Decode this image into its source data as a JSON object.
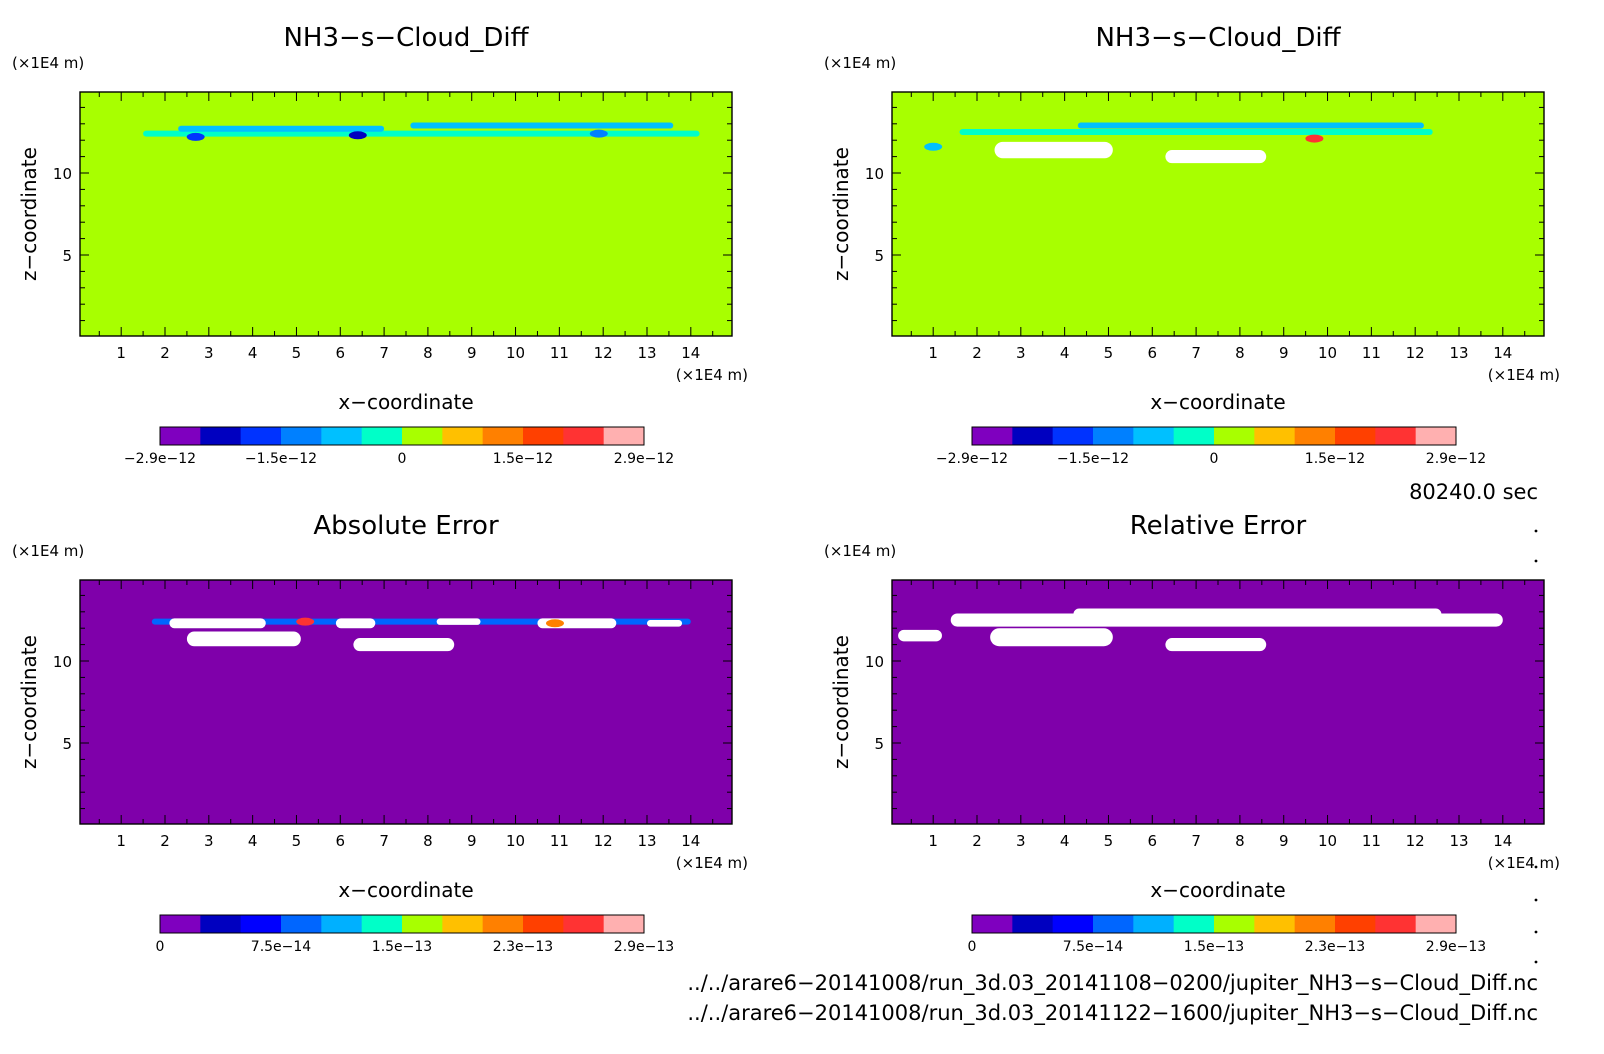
{
  "chart_data": [
    {
      "type": "heatmap",
      "title": "NH3−s−Cloud_Diff",
      "xlabel": "x−coordinate",
      "ylabel": "z−coordinate",
      "x_unit": "(×1E4 m)",
      "z_unit": "(×1E4 m)",
      "xlim": [
        0.06,
        14.94
      ],
      "zlim": [
        0.06,
        14.94
      ],
      "x_ticks": [
        "1",
        "2",
        "3",
        "4",
        "5",
        "6",
        "7",
        "8",
        "9",
        "10",
        "11",
        "12",
        "13",
        "14"
      ],
      "z_ticks": [
        "5",
        "10"
      ],
      "background_color": "#a8ff00",
      "colorbar": {
        "colors": [
          "#7f00bf",
          "#0000c0",
          "#0033ff",
          "#0080ff",
          "#00c0ff",
          "#00ffc8",
          "#a8ff00",
          "#ffc000",
          "#ff8000",
          "#ff4000",
          "#ff3333",
          "#ffb0b0"
        ],
        "labels": [
          "−2.9e−12",
          "−1.5e−12",
          "0",
          "1.5e−12",
          "2.9e−12"
        ]
      },
      "features": [
        {
          "kind": "band",
          "x0": 1.5,
          "x1": 14.2,
          "z": 12.4,
          "color": "#00ffc8"
        },
        {
          "kind": "band",
          "x0": 7.6,
          "x1": 13.6,
          "z": 12.9,
          "color": "#00c0ff"
        },
        {
          "kind": "band",
          "x0": 2.3,
          "x1": 7.0,
          "z": 12.7,
          "color": "#00c0ff"
        },
        {
          "kind": "spot",
          "x": 2.7,
          "z": 12.2,
          "color": "#0033ff"
        },
        {
          "kind": "spot",
          "x": 6.4,
          "z": 12.3,
          "color": "#0000c0"
        },
        {
          "kind": "spot",
          "x": 11.9,
          "z": 12.4,
          "color": "#0080ff"
        }
      ]
    },
    {
      "type": "heatmap",
      "title": "NH3−s−Cloud_Diff",
      "xlabel": "x−coordinate",
      "ylabel": "z−coordinate",
      "x_unit": "(×1E4 m)",
      "z_unit": "(×1E4 m)",
      "xlim": [
        0.06,
        14.94
      ],
      "zlim": [
        0.06,
        14.94
      ],
      "x_ticks": [
        "1",
        "2",
        "3",
        "4",
        "5",
        "6",
        "7",
        "8",
        "9",
        "10",
        "11",
        "12",
        "13",
        "14"
      ],
      "z_ticks": [
        "5",
        "10"
      ],
      "background_color": "#a8ff00",
      "colorbar": {
        "colors": [
          "#7f00bf",
          "#0000c0",
          "#0033ff",
          "#0080ff",
          "#00c0ff",
          "#00ffc8",
          "#a8ff00",
          "#ffc000",
          "#ff8000",
          "#ff4000",
          "#ff3333",
          "#ffb0b0"
        ],
        "labels": [
          "−2.9e−12",
          "−1.5e−12",
          "0",
          "1.5e−12",
          "2.9e−12"
        ]
      },
      "features": [
        {
          "kind": "band",
          "x0": 1.6,
          "x1": 12.4,
          "z": 12.5,
          "color": "#00ffc8"
        },
        {
          "kind": "band",
          "x0": 4.3,
          "x1": 12.2,
          "z": 12.9,
          "color": "#00c0ff"
        },
        {
          "kind": "blob",
          "x0": 2.4,
          "x1": 5.1,
          "z0": 10.9,
          "z1": 11.9,
          "color": "#ffffff"
        },
        {
          "kind": "blob",
          "x0": 6.3,
          "x1": 8.6,
          "z0": 10.6,
          "z1": 11.4,
          "color": "#ffffff"
        },
        {
          "kind": "spot",
          "x": 9.7,
          "z": 12.1,
          "color": "#ff3333"
        },
        {
          "kind": "spot",
          "x": 1.0,
          "z": 11.6,
          "color": "#00c0ff"
        }
      ]
    },
    {
      "type": "heatmap",
      "title": "Absolute Error",
      "xlabel": "x−coordinate",
      "ylabel": "z−coordinate",
      "x_unit": "(×1E4 m)",
      "z_unit": "(×1E4 m)",
      "xlim": [
        0.06,
        14.94
      ],
      "zlim": [
        0.06,
        14.94
      ],
      "x_ticks": [
        "1",
        "2",
        "3",
        "4",
        "5",
        "6",
        "7",
        "8",
        "9",
        "10",
        "11",
        "12",
        "13",
        "14"
      ],
      "z_ticks": [
        "5",
        "10"
      ],
      "background_color": "#7f00aa",
      "colorbar": {
        "colors": [
          "#7f00bf",
          "#0000c0",
          "#0000ff",
          "#0066ff",
          "#00b0ff",
          "#00ffc8",
          "#a8ff00",
          "#ffc000",
          "#ff8000",
          "#ff4000",
          "#ff3333",
          "#ffb0b0"
        ],
        "labels": [
          "0",
          "7.5e−14",
          "1.5e−13",
          "2.3e−13",
          "2.9e−13"
        ]
      },
      "features": [
        {
          "kind": "band",
          "x0": 1.7,
          "x1": 14.0,
          "z": 12.4,
          "color": "#0066ff"
        },
        {
          "kind": "blob",
          "x0": 2.1,
          "x1": 4.3,
          "z0": 12.0,
          "z1": 12.6,
          "color": "#ffffff"
        },
        {
          "kind": "blob",
          "x0": 5.9,
          "x1": 6.8,
          "z0": 12.0,
          "z1": 12.6,
          "color": "#ffffff"
        },
        {
          "kind": "blob",
          "x0": 8.2,
          "x1": 9.2,
          "z0": 12.2,
          "z1": 12.6,
          "color": "#ffffff"
        },
        {
          "kind": "blob",
          "x0": 10.5,
          "x1": 12.3,
          "z0": 12.0,
          "z1": 12.6,
          "color": "#ffffff"
        },
        {
          "kind": "blob",
          "x0": 13.0,
          "x1": 13.8,
          "z0": 12.1,
          "z1": 12.5,
          "color": "#ffffff"
        },
        {
          "kind": "blob",
          "x0": 2.5,
          "x1": 5.1,
          "z0": 10.9,
          "z1": 11.8,
          "color": "#ffffff"
        },
        {
          "kind": "blob",
          "x0": 6.3,
          "x1": 8.6,
          "z0": 10.6,
          "z1": 11.4,
          "color": "#ffffff"
        },
        {
          "kind": "spot",
          "x": 5.2,
          "z": 12.4,
          "color": "#ff3333"
        },
        {
          "kind": "spot",
          "x": 10.9,
          "z": 12.3,
          "color": "#ff8000"
        }
      ]
    },
    {
      "type": "heatmap",
      "title": "Relative Error",
      "xlabel": "x−coordinate",
      "ylabel": "z−coordinate",
      "x_unit": "(×1E4 m)",
      "z_unit": "(×1E4 m)",
      "xlim": [
        0.06,
        14.94
      ],
      "zlim": [
        0.06,
        14.94
      ],
      "x_ticks": [
        "1",
        "2",
        "3",
        "4",
        "5",
        "6",
        "7",
        "8",
        "9",
        "10",
        "11",
        "12",
        "13",
        "14"
      ],
      "z_ticks": [
        "5",
        "10"
      ],
      "background_color": "#7f00aa",
      "colorbar": {
        "colors": [
          "#7f00bf",
          "#0000c0",
          "#0000ff",
          "#0066ff",
          "#00b0ff",
          "#00ffc8",
          "#a8ff00",
          "#ffc000",
          "#ff8000",
          "#ff4000",
          "#ff3333",
          "#ffb0b0"
        ],
        "labels": [
          "0",
          "7.5e−14",
          "1.5e−13",
          "2.3e−13",
          "2.9e−13"
        ]
      },
      "features": [
        {
          "kind": "blob",
          "x0": 1.4,
          "x1": 14.0,
          "z0": 12.1,
          "z1": 12.9,
          "color": "#ffffff"
        },
        {
          "kind": "blob",
          "x0": 4.2,
          "x1": 12.6,
          "z0": 12.5,
          "z1": 13.2,
          "color": "#ffffff"
        },
        {
          "kind": "blob",
          "x0": 2.3,
          "x1": 5.1,
          "z0": 10.9,
          "z1": 12.0,
          "color": "#ffffff"
        },
        {
          "kind": "blob",
          "x0": 6.3,
          "x1": 8.6,
          "z0": 10.6,
          "z1": 11.4,
          "color": "#ffffff"
        },
        {
          "kind": "blob",
          "x0": 0.2,
          "x1": 1.2,
          "z0": 11.2,
          "z1": 11.9,
          "color": "#ffffff"
        }
      ]
    }
  ],
  "time_label": "80240.0 sec",
  "file_paths": [
    "../../arare6−20141008/run_3d.03_20141108−0200/jupiter_NH3−s−Cloud_Diff.nc",
    "../../arare6−20141008/run_3d.03_20141122−1600/jupiter_NH3−s−Cloud_Diff.nc"
  ]
}
